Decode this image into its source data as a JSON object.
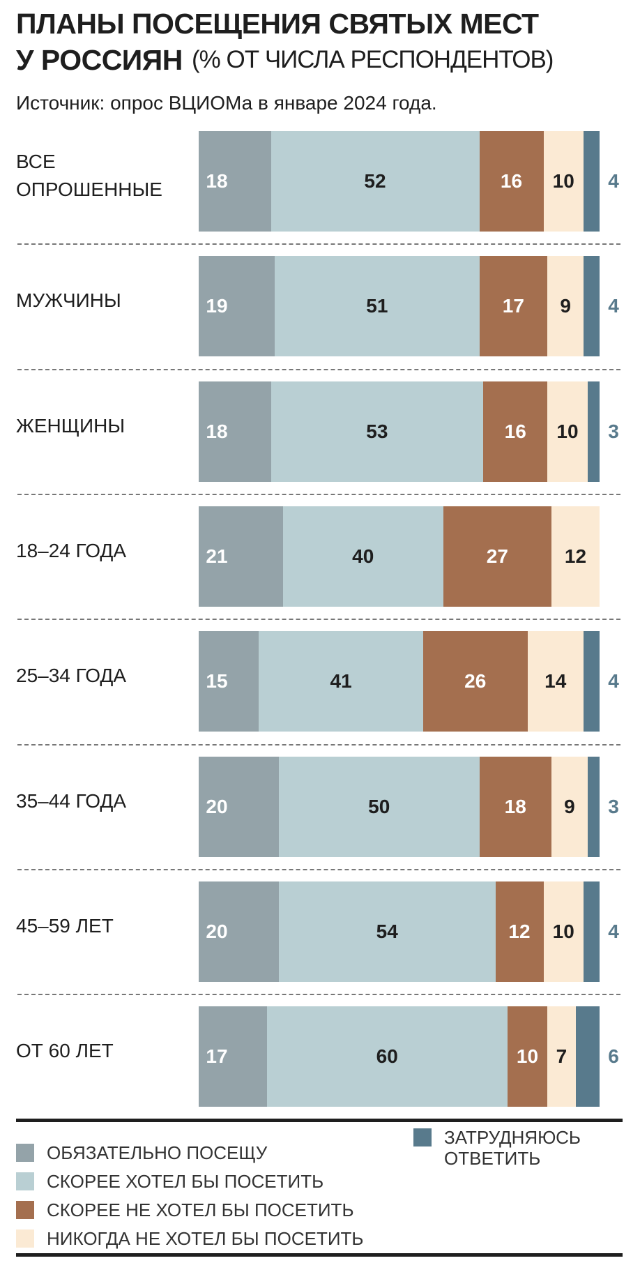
{
  "chart_data": {
    "type": "bar",
    "stacked": true,
    "orientation": "horizontal",
    "title": "ПЛАНЫ ПОСЕЩЕНИЯ СВЯТЫХ МЕСТ\nУ РОССИЯН",
    "subtitle": "(% ОТ ЧИСЛА РЕСПОНДЕНТОВ)",
    "source": "Источник: опрос ВЦИОМа в январе 2024 года.",
    "categories": [
      "ВСЕ\nОПРОШЕННЫЕ",
      "МУЖЧИНЫ",
      "ЖЕНЩИНЫ",
      "18–24 ГОДА",
      "25–34 ГОДА",
      "35–44 ГОДА",
      "45–59 ЛЕТ",
      "ОТ 60 ЛЕТ"
    ],
    "xlim": [
      0,
      100
    ],
    "series": [
      {
        "name": "ОБЯЗАТЕЛЬНО ПОСЕЩУ",
        "color": "#94a3a9",
        "values": [
          18,
          19,
          18,
          21,
          15,
          20,
          20,
          17
        ]
      },
      {
        "name": "СКОРЕЕ ХОТЕЛ БЫ ПОСЕТИТЬ",
        "color": "#b9cfd3",
        "values": [
          52,
          51,
          53,
          40,
          41,
          50,
          54,
          60
        ]
      },
      {
        "name": "СКОРЕЕ НЕ ХОТЕЛ БЫ ПОСЕТИТЬ",
        "color": "#a46f4f",
        "values": [
          16,
          17,
          16,
          27,
          26,
          18,
          12,
          10
        ]
      },
      {
        "name": "НИКОГДА НЕ ХОТЕЛ БЫ ПОСЕТИТЬ",
        "color": "#fbead4",
        "values": [
          10,
          9,
          10,
          12,
          14,
          9,
          10,
          7
        ]
      },
      {
        "name": "ЗАТРУДНЯЮСЬ\nОТВЕТИТЬ",
        "color": "#587a8c",
        "values": [
          4,
          4,
          3,
          null,
          4,
          3,
          4,
          6
        ]
      }
    ]
  }
}
